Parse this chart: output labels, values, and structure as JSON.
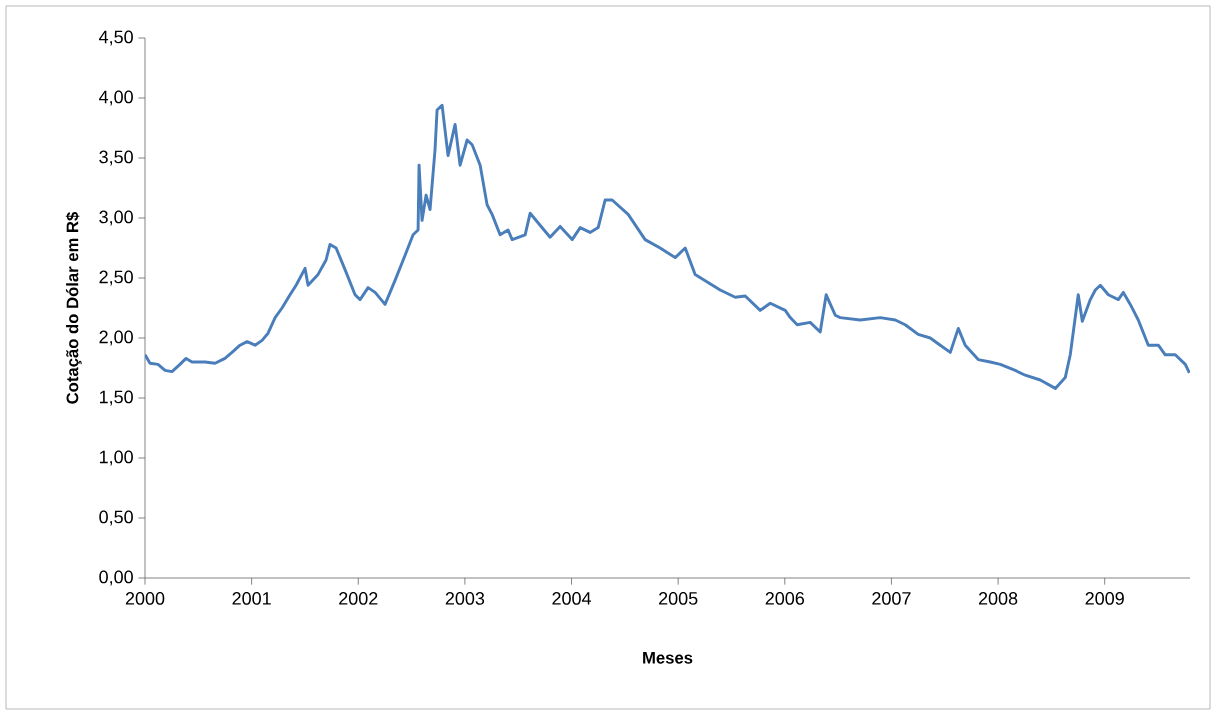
{
  "chart_data": {
    "type": "line",
    "xlabel": "Meses",
    "ylabel": "Cotação do Dólar em R$",
    "x": [
      2000.0,
      2000.047,
      2000.122,
      2000.188,
      2000.253,
      2000.328,
      2000.385,
      2000.441,
      2000.563,
      2000.657,
      2000.75,
      2000.816,
      2000.891,
      2000.957,
      2001.032,
      2001.098,
      2001.154,
      2001.22,
      2001.285,
      2001.36,
      2001.417,
      2001.501,
      2001.529,
      2001.623,
      2001.698,
      2001.735,
      2001.792,
      2001.876,
      2001.97,
      2002.017,
      2002.092,
      2002.158,
      2002.251,
      2002.345,
      2002.439,
      2002.514,
      2002.561,
      2002.57,
      2002.598,
      2002.636,
      2002.673,
      2002.72,
      2002.739,
      2002.786,
      2002.842,
      2002.908,
      2002.955,
      2003.021,
      2003.068,
      2003.143,
      2003.208,
      2003.255,
      2003.33,
      2003.405,
      2003.443,
      2003.565,
      2003.612,
      2003.705,
      2003.799,
      2003.893,
      2004.006,
      2004.081,
      2004.174,
      2004.25,
      2004.315,
      2004.381,
      2004.531,
      2004.69,
      2004.831,
      2004.972,
      2005.066,
      2005.159,
      2005.394,
      2005.535,
      2005.629,
      2005.769,
      2005.863,
      2006.004,
      2006.051,
      2006.116,
      2006.238,
      2006.332,
      2006.388,
      2006.473,
      2006.52,
      2006.707,
      2006.895,
      2007.036,
      2007.129,
      2007.251,
      2007.364,
      2007.458,
      2007.552,
      2007.627,
      2007.692,
      2007.814,
      2007.927,
      2008.021,
      2008.161,
      2008.255,
      2008.396,
      2008.537,
      2008.63,
      2008.677,
      2008.752,
      2008.79,
      2008.865,
      2008.912,
      2008.959,
      2009.034,
      2009.128,
      2009.175,
      2009.24,
      2009.315,
      2009.409,
      2009.503,
      2009.568,
      2009.662,
      2009.756,
      2009.794
    ],
    "series": [
      {
        "color": "#4a7ebb",
        "values": [
          1.86,
          1.79,
          1.78,
          1.73,
          1.72,
          1.78,
          1.83,
          1.8,
          1.8,
          1.79,
          1.83,
          1.88,
          1.94,
          1.97,
          1.94,
          1.98,
          2.04,
          2.17,
          2.25,
          2.36,
          2.44,
          2.58,
          2.44,
          2.53,
          2.65,
          2.78,
          2.75,
          2.57,
          2.36,
          2.32,
          2.42,
          2.38,
          2.28,
          2.48,
          2.69,
          2.86,
          2.9,
          3.44,
          2.98,
          3.19,
          3.07,
          3.57,
          3.9,
          3.94,
          3.52,
          3.78,
          3.44,
          3.65,
          3.61,
          3.44,
          3.11,
          3.03,
          2.86,
          2.9,
          2.82,
          2.86,
          3.04,
          2.94,
          2.84,
          2.93,
          2.82,
          2.92,
          2.88,
          2.92,
          3.15,
          3.15,
          3.03,
          2.82,
          2.75,
          2.67,
          2.75,
          2.53,
          2.4,
          2.34,
          2.35,
          2.23,
          2.29,
          2.23,
          2.17,
          2.11,
          2.13,
          2.05,
          2.36,
          2.19,
          2.17,
          2.15,
          2.17,
          2.15,
          2.11,
          2.03,
          2.0,
          1.94,
          1.88,
          2.08,
          1.94,
          1.82,
          1.8,
          1.78,
          1.73,
          1.69,
          1.65,
          1.58,
          1.67,
          1.86,
          2.36,
          2.14,
          2.32,
          2.4,
          2.44,
          2.36,
          2.32,
          2.38,
          2.28,
          2.15,
          1.94,
          1.94,
          1.86,
          1.86,
          1.78,
          1.71
        ]
      }
    ],
    "xlim": [
      2000,
      2009.8
    ],
    "xticks": [
      2000,
      2001,
      2002,
      2003,
      2004,
      2005,
      2006,
      2007,
      2008,
      2009
    ],
    "ylim": [
      0,
      4.5
    ],
    "yticks": [
      {
        "value": 0,
        "label": "0,00"
      },
      {
        "value": 0.5,
        "label": "0,50"
      },
      {
        "value": 1,
        "label": "1,00"
      },
      {
        "value": 1.5,
        "label": "1,50"
      },
      {
        "value": 2,
        "label": "2,00"
      },
      {
        "value": 2.5,
        "label": "2,50"
      },
      {
        "value": 3,
        "label": "3,00"
      },
      {
        "value": 3.5,
        "label": "3,50"
      },
      {
        "value": 4,
        "label": "4,00"
      },
      {
        "value": 4.5,
        "label": "4,50"
      }
    ],
    "grid": false,
    "marker": "none",
    "line_style": "solid"
  }
}
